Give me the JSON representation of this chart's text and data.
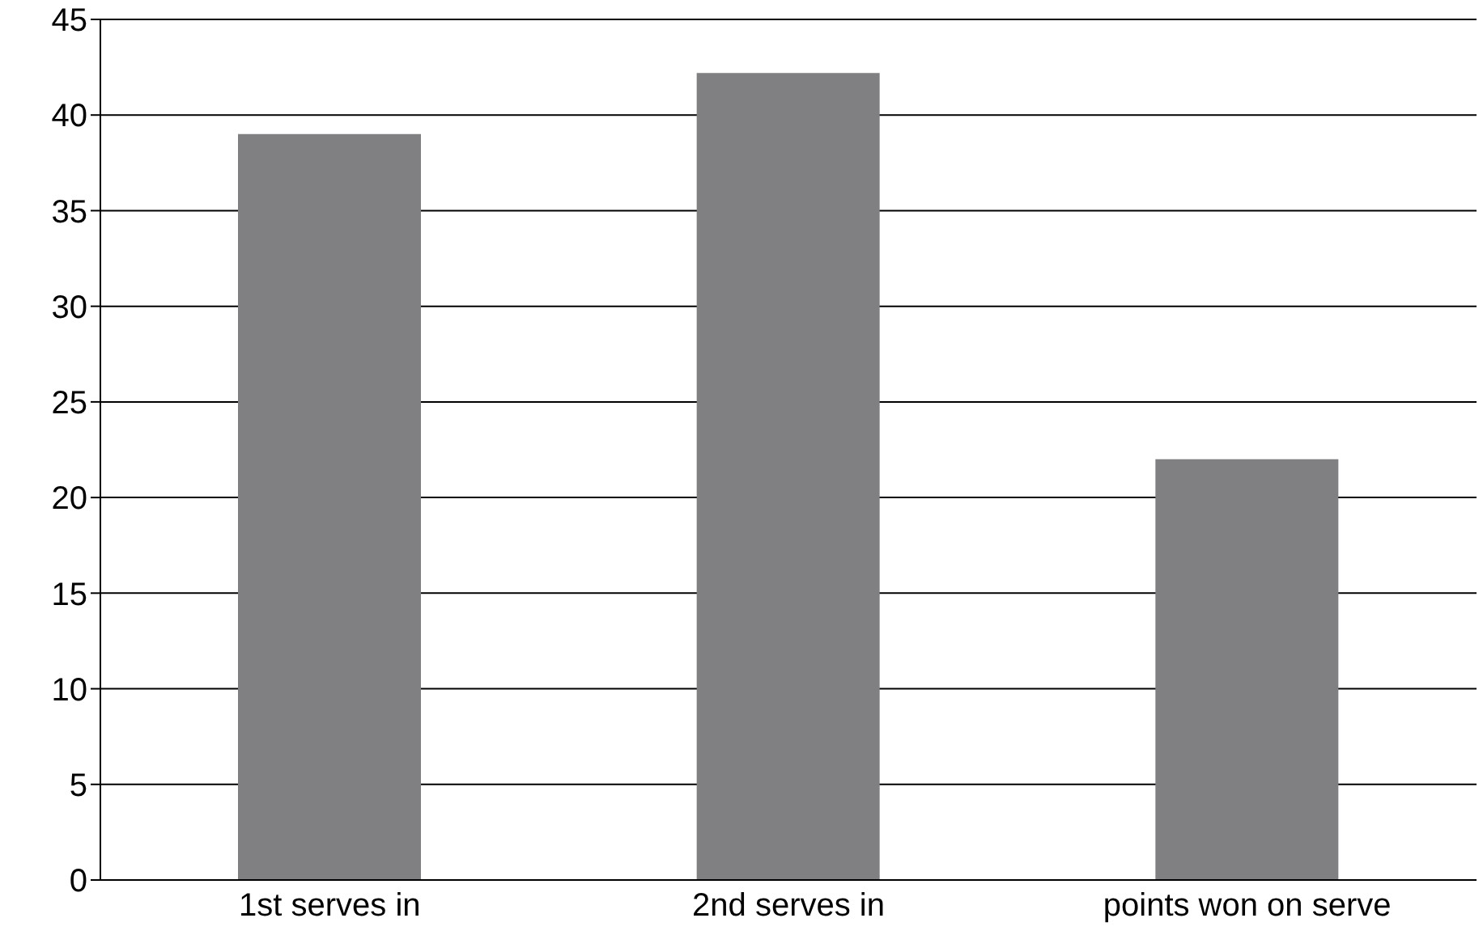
{
  "chart_data": {
    "type": "bar",
    "categories": [
      "1st serves in",
      "2nd serves in",
      "points won on serve"
    ],
    "values": [
      39,
      42.2,
      22
    ],
    "color": "#808083",
    "ylim": [
      0,
      45
    ],
    "yticks": [
      0,
      5,
      10,
      15,
      20,
      25,
      30,
      35,
      40,
      45
    ],
    "grid": "y"
  }
}
